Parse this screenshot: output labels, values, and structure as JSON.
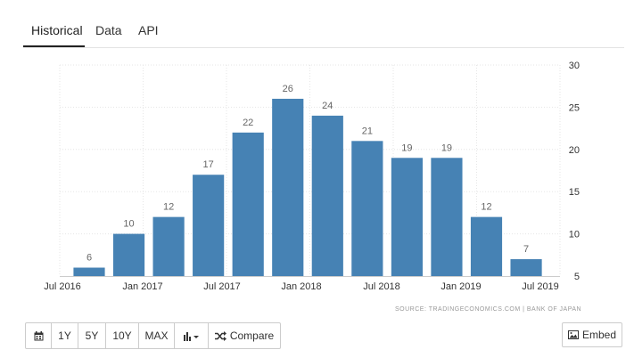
{
  "tabs": [
    {
      "label": "Historical"
    },
    {
      "label": "Data"
    },
    {
      "label": "API"
    }
  ],
  "source": "SOURCE: TRADINGECONOMICS.COM  |  BANK OF JAPAN",
  "toolbar": {
    "calendar_icon": "calendar-icon",
    "range_1y": "1Y",
    "range_5y": "5Y",
    "range_10y": "10Y",
    "range_max": "MAX",
    "chart_type_icon": "bar-chart-icon",
    "compare_icon": "shuffle-icon",
    "compare_label": "Compare"
  },
  "embed": {
    "icon": "image-icon",
    "label": "Embed"
  },
  "colors": {
    "bar": "#4682b4",
    "grid": "#e6e6e6",
    "axis": "#333333"
  },
  "chart_data": {
    "type": "bar",
    "title": "",
    "xlabel": "",
    "ylabel": "",
    "ylim": [
      5,
      30
    ],
    "yticks": [
      5,
      10,
      15,
      20,
      25,
      30
    ],
    "x_tick_labels": [
      "Jul 2016",
      "Jan 2017",
      "Jul 2017",
      "Jan 2018",
      "Jul 2018",
      "Jan 2019",
      "Jul 2019"
    ],
    "categories": [
      "Sep 2016",
      "Dec 2016",
      "Mar 2017",
      "Jun 2017",
      "Sep 2017",
      "Dec 2017",
      "Mar 2018",
      "Jun 2018",
      "Sep 2018",
      "Dec 2018",
      "Mar 2019",
      "Jun 2019"
    ],
    "values": [
      6,
      10,
      12,
      17,
      22,
      26,
      24,
      21,
      19,
      19,
      12,
      7
    ],
    "grid": true,
    "legend": "none"
  }
}
